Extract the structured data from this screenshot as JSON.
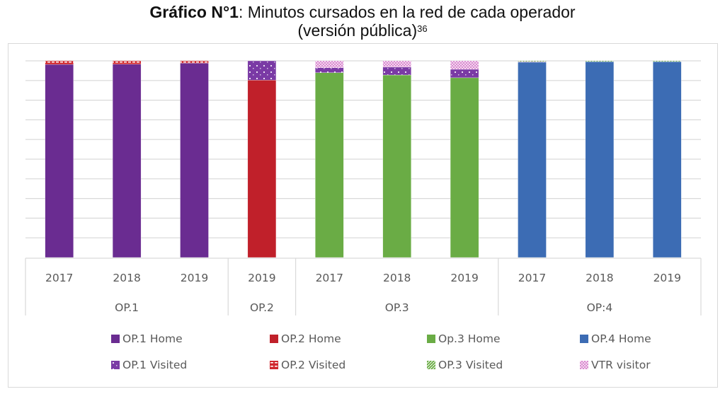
{
  "title": {
    "bold": "Gráfico N°1",
    "rest": ": Minutos cursados en la red de cada operador",
    "line2": "(versión pública)",
    "superscript": "36"
  },
  "chart_data": {
    "type": "bar",
    "stacked": true,
    "title": "Gráfico N°1: Minutos cursados en la red de cada operador (versión pública)",
    "xlabel": "",
    "ylabel": "",
    "ylim": [
      0,
      100
    ],
    "y_unit": "percent of minutes (approx., no tick labels shown)",
    "grid": true,
    "legend_position": "bottom",
    "groups": [
      {
        "label": "OP.1",
        "categories": [
          "2017",
          "2018",
          "2019"
        ]
      },
      {
        "label": "OP.2",
        "categories": [
          "2019"
        ]
      },
      {
        "label": "OP.3",
        "categories": [
          "2017",
          "2018",
          "2019"
        ]
      },
      {
        "label": "OP:4",
        "categories": [
          "2017",
          "2018",
          "2019"
        ]
      }
    ],
    "categories": [
      "2017",
      "2018",
      "2019",
      "2019",
      "2017",
      "2018",
      "2019",
      "2017",
      "2018",
      "2019"
    ],
    "series": [
      {
        "name": "OP.1 Home",
        "color": "#6a2c91",
        "pattern": "solid",
        "values": [
          98.2,
          98.3,
          98.8,
          0,
          0,
          0,
          0,
          0,
          0,
          0
        ]
      },
      {
        "name": "OP.2 Home",
        "color": "#c0202a",
        "pattern": "solid",
        "values": [
          0,
          0,
          0,
          90.2,
          0,
          0,
          0,
          0,
          0,
          0
        ]
      },
      {
        "name": "Op.3 Home",
        "color": "#6aac45",
        "pattern": "solid",
        "values": [
          0,
          0,
          0,
          0,
          94.0,
          92.8,
          91.4,
          0,
          0,
          0
        ]
      },
      {
        "name": "OP.4 Home",
        "color": "#3c6cb4",
        "pattern": "solid",
        "values": [
          0,
          0,
          0,
          0,
          0,
          0,
          0,
          99.3,
          99.6,
          99.6
        ]
      },
      {
        "name": "OP.1 Visited",
        "color": "#7a3aa5",
        "pattern": "dots",
        "values": [
          0,
          0,
          0,
          9.8,
          2.5,
          4.0,
          4.3,
          0.3,
          0,
          0
        ]
      },
      {
        "name": "OP.2 Visited",
        "color": "#d0282e",
        "pattern": "grid",
        "values": [
          1.8,
          1.7,
          1.2,
          0,
          0,
          0,
          0,
          0,
          0,
          0
        ]
      },
      {
        "name": "OP.3 Visited",
        "color": "#6aac45",
        "pattern": "diagonal",
        "values": [
          0,
          0,
          0,
          0,
          0,
          0,
          0,
          0.4,
          0.4,
          0.4
        ]
      },
      {
        "name": "VTR visitor",
        "color": "#d98cd0",
        "pattern": "checker",
        "values": [
          0,
          0,
          0,
          0,
          3.5,
          3.2,
          4.3,
          0,
          0,
          0
        ]
      }
    ]
  }
}
